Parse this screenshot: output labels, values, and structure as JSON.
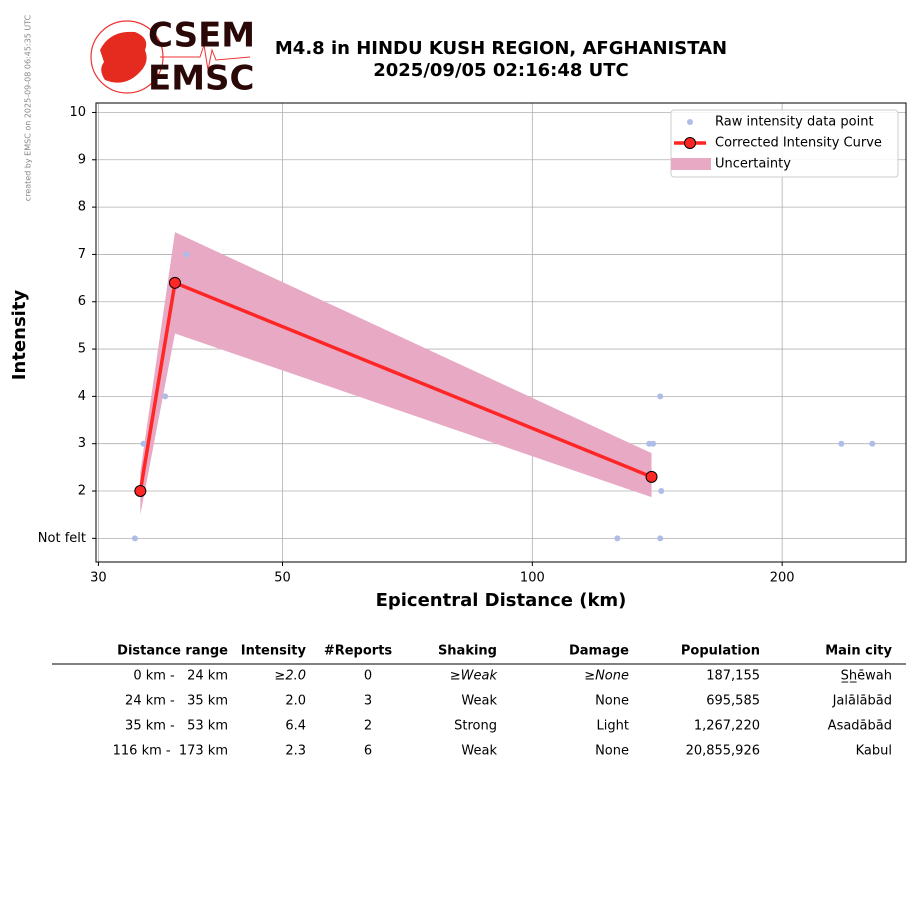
{
  "side_note": "created by EMSC on 2025-09-08 06:45:35 UTC",
  "logo": {
    "top": "CSEM",
    "bottom": "EMSC"
  },
  "chart_data": {
    "type": "line",
    "title": "M4.8 in HINDU KUSH REGION, AFGHANISTAN",
    "subtitle": "2025/09/05 02:16:48 UTC",
    "x_label": "Epicentral Distance (km)",
    "y_label": "Intensity",
    "log_x": true,
    "grid": true,
    "legend": "upper right",
    "xlim": [
      29.8,
      282
    ],
    "xticks": [
      30,
      50,
      100,
      200
    ],
    "ylim": [
      0.5,
      10.2
    ],
    "yticks": [
      {
        "value": 1,
        "label": "Not felt"
      },
      2,
      3,
      4,
      5,
      6,
      7,
      8,
      9,
      10
    ],
    "series": [
      {
        "name": "Uncertainty",
        "kind": "band",
        "color": "#e8a9c5",
        "x": [
          33.7,
          37.1,
          139.2
        ],
        "lower": [
          1.5,
          5.33,
          1.87
        ],
        "upper": [
          2.4,
          7.47,
          2.8
        ]
      },
      {
        "name": "Raw intensity data point",
        "kind": "points",
        "color": "#aebde8",
        "x": [
          33.2,
          34.0,
          36.1,
          38.3,
          126.6,
          138.3,
          139.8,
          142.6,
          143,
          142.6,
          235.7,
          256.8
        ],
        "values": [
          1,
          3,
          4,
          7,
          1,
          3,
          3,
          4,
          2,
          1,
          3,
          3
        ]
      },
      {
        "name": "Corrected Intensity Curve",
        "kind": "line",
        "color": "#ff2626",
        "x": [
          33.7,
          37.1,
          139.2
        ],
        "values": [
          2.0,
          6.4,
          2.3
        ]
      }
    ]
  },
  "table": {
    "headers": [
      "Distance range",
      "Intensity",
      "#Reports",
      "Shaking",
      "Damage",
      "Population",
      "Main city"
    ],
    "rows": [
      [
        "0 km -   24 km",
        "≥2.0",
        "0",
        "≥Weak",
        "≥None",
        "187,155",
        "S̲h̲ēwah"
      ],
      [
        "24 km -   35 km",
        "2.0",
        "3",
        "Weak",
        "None",
        "695,585",
        "Jalālābād"
      ],
      [
        "35 km -   53 km",
        "6.4",
        "2",
        "Strong",
        "Light",
        "1,267,220",
        "Asadābād"
      ],
      [
        "116 km -  173 km",
        "2.3",
        "6",
        "Weak",
        "None",
        "20,855,926",
        "Kabul"
      ]
    ]
  }
}
